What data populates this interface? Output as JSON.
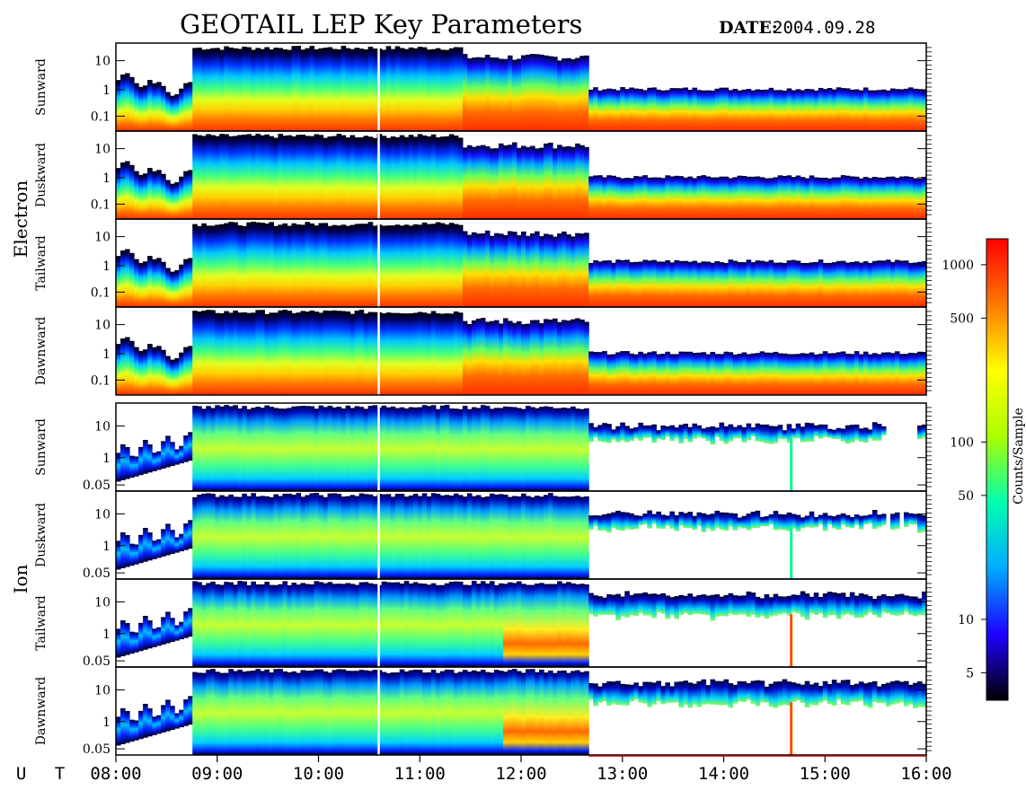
{
  "header": {
    "title": "GEOTAIL LEP Key Parameters",
    "date_label": "DATE:",
    "date_value": "2004.09.28"
  },
  "chart_data": {
    "type": "heatmap",
    "title": "GEOTAIL LEP Key Parameters",
    "x": {
      "label": "U T",
      "range": [
        "08:00",
        "16:00"
      ],
      "ticks": [
        "08:00",
        "09:00",
        "10:00",
        "11:00",
        "12:00",
        "13:00",
        "14:00",
        "15:00",
        "16:00"
      ]
    },
    "groups": [
      {
        "name": "Electron",
        "y_ticks": [
          "10",
          "1",
          "0.1"
        ],
        "panels": [
          "Sunward",
          "Duskward",
          "Tailward",
          "Dawnward"
        ]
      },
      {
        "name": "Ion",
        "y_ticks": [
          "10",
          "1",
          "0.05"
        ],
        "panels": [
          "Sunward",
          "Duskward",
          "Tailward",
          "Dawnward"
        ]
      }
    ],
    "colorbar": {
      "label": "Counts/Sample",
      "scale": "log",
      "ticks": [
        "5",
        "10",
        "50",
        "100",
        "500",
        "1000"
      ],
      "colors": [
        "#000000",
        "#1e00ff",
        "#00aaff",
        "#00ffb0",
        "#aaff00",
        "#ffff00",
        "#ff7a00",
        "#ff0000"
      ]
    },
    "features": {
      "electron_dropout_time": "12:40",
      "ion_dropout_time": "12:40",
      "ion_spike_time": "14:40"
    }
  }
}
